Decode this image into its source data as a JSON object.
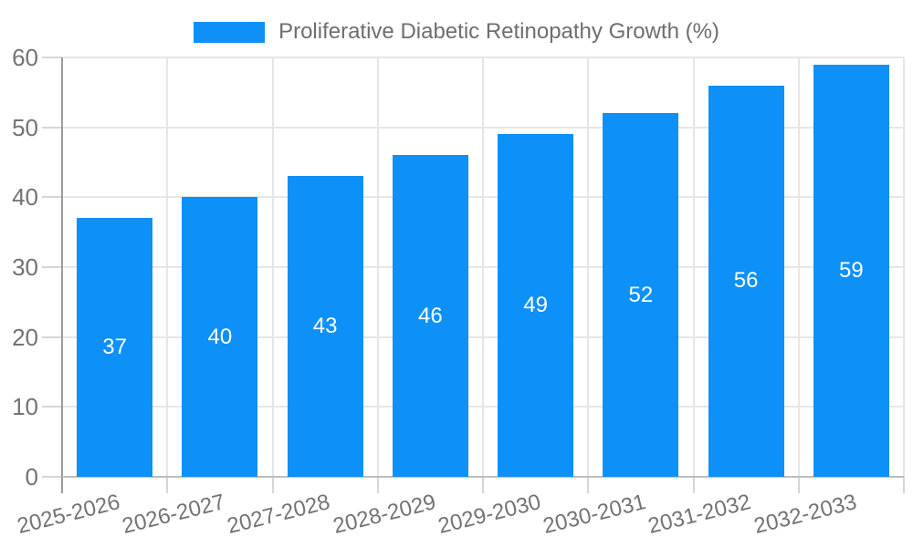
{
  "chart_data": {
    "type": "bar",
    "title": "",
    "legend_label": "Proliferative Diabetic Retinopathy Growth (%)",
    "legend_position": "top",
    "categories": [
      "2025-2026",
      "2026-2027",
      "2027-2028",
      "2028-2029",
      "2029-2030",
      "2030-2031",
      "2031-2032",
      "2032-2033"
    ],
    "values": [
      37,
      40,
      43,
      46,
      49,
      52,
      56,
      59
    ],
    "xlabel": "",
    "ylabel": "",
    "ylim": [
      0,
      60
    ],
    "yticks": [
      0,
      10,
      20,
      30,
      40,
      50,
      60
    ],
    "grid": true,
    "colors": {
      "bar": "#0d90f8",
      "bar_value_label": "#ffffff",
      "grid": "#e6e6e6",
      "tick": "#d6d6d6",
      "axis_line": "#9c9c9c",
      "bottom_border": "#bdbdbd",
      "text": "#737373",
      "background": "#ffffff"
    }
  }
}
